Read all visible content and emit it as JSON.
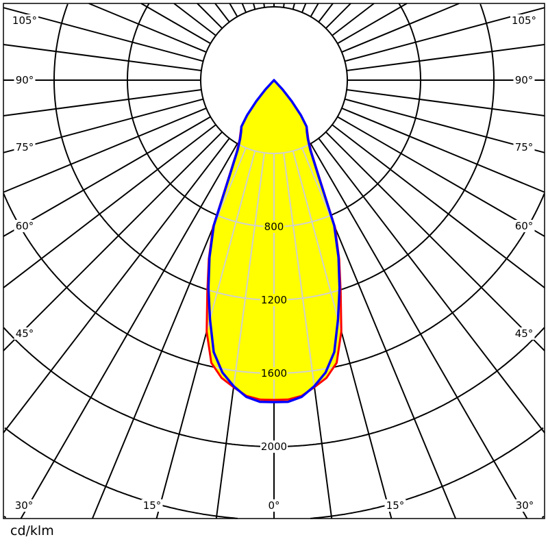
{
  "chart_data": {
    "type": "polar-line",
    "unit_label": "cd/klm",
    "radial_ticks": [
      400,
      800,
      1200,
      1600,
      2000,
      2400,
      2800
    ],
    "radial_tick_labels": [
      "800",
      "1200",
      "1600",
      "2000"
    ],
    "angle_step_deg": 7.5,
    "angle_labels_left": [
      "105°",
      "90°",
      "75°",
      "60°",
      "45°",
      "30°",
      "15°"
    ],
    "angle_labels_bottom": [
      "30°",
      "15°",
      "0°",
      "15°",
      "30°"
    ],
    "angle_labels_right": [
      "105°",
      "90°",
      "75°",
      "60°",
      "45°",
      "30°"
    ],
    "angles_deg": [
      0,
      2.5,
      5,
      7.5,
      10,
      12.5,
      15,
      17.5,
      20,
      22.5,
      25,
      27.5,
      30,
      32.5,
      35,
      37.5,
      40,
      42.5,
      45
    ],
    "series": [
      {
        "values": [
          1745,
          1745,
          1730,
          1690,
          1650,
          1580,
          1420,
          1210,
          1040,
          870,
          580,
          440,
          375,
          340,
          310,
          240,
          150,
          70,
          0
        ],
        "color": "#ff0000"
      },
      {
        "values": [
          1757,
          1757,
          1735,
          1685,
          1620,
          1520,
          1350,
          1190,
          1030,
          860,
          570,
          430,
          370,
          335,
          310,
          240,
          150,
          70,
          0
        ],
        "color": "#0000ff"
      }
    ],
    "fill_color": "#ffff00",
    "grid": true,
    "symmetric": true
  }
}
